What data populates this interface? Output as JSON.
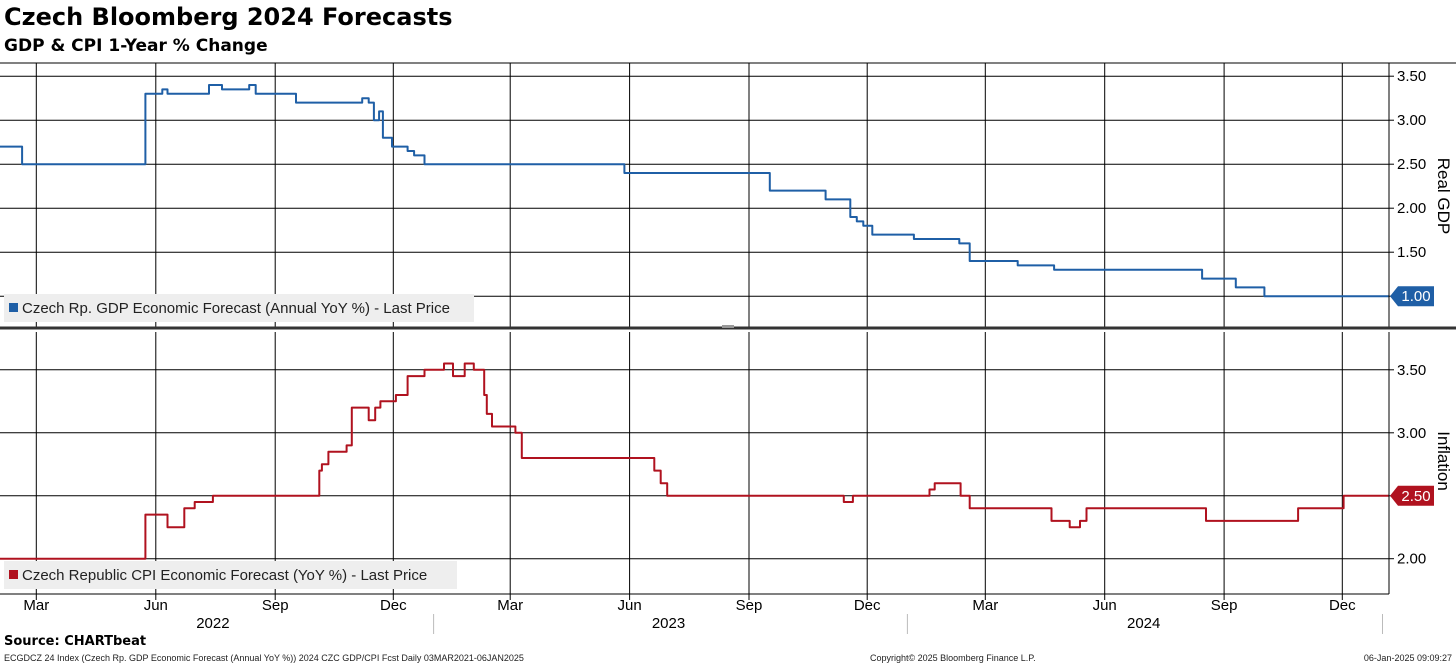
{
  "title": "Czech Bloomberg 2024 Forecasts",
  "subtitle": "GDP & CPI 1-Year % Change",
  "source": "Source: CHARTbeat",
  "footer": {
    "left": "ECGDCZ 24 Index (Czech Rp. GDP Economic Forecast (Annual YoY %)) 2024 CZC GDP/CPI Fcst  Daily 03MAR2021-06JAN2025",
    "middle": "Copyright© 2025 Bloomberg Finance L.P.",
    "right": "06-Jan-2025 09:09:27"
  },
  "colors": {
    "gdp": "#1f5fa6",
    "cpi": "#b0121f",
    "grid": "#000000",
    "legend_bg": "#eeeeee"
  },
  "chart_data": [
    {
      "type": "line",
      "title": "",
      "ylabel": "Real GDP",
      "ylim": [
        0.65,
        3.65
      ],
      "yticks": [
        "3.50",
        "3.00",
        "2.50",
        "2.00",
        "1.50",
        "1.00"
      ],
      "last_value_label": "1.00",
      "series": [
        {
          "name": "Czech Rp. GDP Economic Forecast (Annual YoY %) - Last Price",
          "x": [
            "2022-02-01",
            "2022-02-18",
            "2022-02-18",
            "2022-05-24",
            "2022-05-24",
            "2022-06-06",
            "2022-06-06",
            "2022-06-10",
            "2022-06-10",
            "2022-07-12",
            "2022-07-12",
            "2022-07-22",
            "2022-07-22",
            "2022-08-12",
            "2022-08-12",
            "2022-08-17",
            "2022-08-17",
            "2022-09-12",
            "2022-09-12",
            "2022-09-17",
            "2022-09-17",
            "2022-11-07",
            "2022-11-07",
            "2022-11-12",
            "2022-11-12",
            "2022-11-16",
            "2022-11-16",
            "2022-11-20",
            "2022-11-20",
            "2022-11-23",
            "2022-11-23",
            "2022-11-25",
            "2022-11-25",
            "2022-11-30",
            "2022-11-30",
            "2022-12-07",
            "2022-12-07",
            "2022-12-12",
            "2022-12-12",
            "2022-12-17",
            "2022-12-17",
            "2022-12-25",
            "2022-12-25",
            "2022-12-30",
            "2022-12-30",
            "2022-12-31",
            "2022-12-31",
            "2023-05-28",
            "2023-05-28",
            "2023-09-10",
            "2023-09-10",
            "2023-09-17",
            "2023-09-17",
            "2023-10-30",
            "2023-10-30",
            "2023-11-18",
            "2023-11-18",
            "2023-11-23",
            "2023-11-23",
            "2023-11-28",
            "2023-11-28",
            "2023-12-05",
            "2023-12-05",
            "2023-12-12",
            "2023-12-12",
            "2024-01-06",
            "2024-01-06",
            "2024-02-10",
            "2024-02-10",
            "2024-02-18",
            "2024-02-18",
            "2024-03-26",
            "2024-03-26",
            "2024-04-23",
            "2024-04-23",
            "2024-08-09",
            "2024-08-09",
            "2024-08-15",
            "2024-08-15",
            "2024-08-27",
            "2024-08-27",
            "2024-09-10",
            "2024-09-10",
            "2024-09-28",
            "2024-09-28",
            "2024-10-02",
            "2024-10-02",
            "2025-01-06"
          ],
          "values": [
            2.7,
            2.7,
            2.5,
            2.5,
            3.3,
            3.3,
            3.35,
            3.35,
            3.3,
            3.3,
            3.4,
            3.4,
            3.35,
            3.35,
            3.4,
            3.4,
            3.3,
            3.3,
            3.3,
            3.3,
            3.2,
            3.2,
            3.25,
            3.25,
            3.2,
            3.2,
            3.0,
            3.0,
            3.1,
            3.1,
            2.8,
            2.8,
            2.8,
            2.8,
            2.7,
            2.7,
            2.7,
            2.7,
            2.65,
            2.65,
            2.6,
            2.6,
            2.5,
            2.5,
            2.5,
            2.5,
            2.5,
            2.5,
            2.4,
            2.4,
            2.4,
            2.4,
            2.2,
            2.2,
            2.1,
            2.1,
            1.9,
            1.9,
            1.85,
            1.85,
            1.8,
            1.8,
            1.7,
            1.7,
            1.7,
            1.7,
            1.65,
            1.65,
            1.6,
            1.6,
            1.4,
            1.4,
            1.35,
            1.35,
            1.3,
            1.3,
            1.3,
            1.3,
            1.2,
            1.2,
            1.2,
            1.2,
            1.1,
            1.1,
            1.1,
            1.1,
            1.0,
            1.0
          ]
        }
      ]
    },
    {
      "type": "line",
      "title": "",
      "ylabel": "Inflation",
      "ylim": [
        1.72,
        3.8
      ],
      "yticks": [
        "3.50",
        "3.00",
        "2.50",
        "2.00"
      ],
      "last_value_label": "2.50",
      "xticks": [
        "Mar",
        "Jun",
        "Sep",
        "Dec",
        "Mar",
        "Jun",
        "Sep",
        "Dec",
        "Mar",
        "Jun",
        "Sep",
        "Dec"
      ],
      "xyears": [
        "2022",
        "2023",
        "2024"
      ],
      "series": [
        {
          "name": "Czech Republic CPI Economic Forecast (YoY %) - Last Price",
          "x": [
            "2022-02-01",
            "2022-05-24",
            "2022-05-24",
            "2022-06-10",
            "2022-06-10",
            "2022-06-23",
            "2022-06-23",
            "2022-06-25",
            "2022-06-25",
            "2022-07-01",
            "2022-07-01",
            "2022-07-15",
            "2022-07-15",
            "2022-10-05",
            "2022-10-05",
            "2022-10-07",
            "2022-10-07",
            "2022-10-12",
            "2022-10-12",
            "2022-10-16",
            "2022-10-16",
            "2022-10-26",
            "2022-10-26",
            "2022-10-30",
            "2022-10-30",
            "2022-11-12",
            "2022-11-12",
            "2022-11-17",
            "2022-11-17",
            "2022-11-21",
            "2022-11-21",
            "2022-12-03",
            "2022-12-03",
            "2022-12-12",
            "2022-12-12",
            "2022-12-21",
            "2022-12-21",
            "2022-12-25",
            "2022-12-25",
            "2023-01-09",
            "2023-01-09",
            "2023-01-16",
            "2023-01-16",
            "2023-01-25",
            "2023-01-25",
            "2023-02-01",
            "2023-02-01",
            "2023-02-09",
            "2023-02-09",
            "2023-02-11",
            "2023-02-11",
            "2023-02-15",
            "2023-02-15",
            "2023-03-05",
            "2023-03-05",
            "2023-03-10",
            "2023-03-10",
            "2023-06-20",
            "2023-06-20",
            "2023-06-25",
            "2023-06-25",
            "2023-06-30",
            "2023-06-30",
            "2023-11-13",
            "2023-11-13",
            "2023-11-20",
            "2023-11-20",
            "2024-01-18",
            "2024-01-18",
            "2024-01-22",
            "2024-01-22",
            "2024-01-25",
            "2024-01-25",
            "2024-02-11",
            "2024-02-11",
            "2024-02-18",
            "2024-02-18",
            "2024-04-21",
            "2024-04-21",
            "2024-05-05",
            "2024-05-05",
            "2024-05-13",
            "2024-05-13",
            "2024-05-18",
            "2024-05-18",
            "2024-08-18",
            "2024-08-18",
            "2024-10-28",
            "2024-10-28",
            "2024-12-02",
            "2024-12-02",
            "2025-01-06"
          ],
          "values": [
            2.0,
            2.0,
            2.35,
            2.35,
            2.25,
            2.25,
            2.4,
            2.4,
            2.4,
            2.4,
            2.45,
            2.45,
            2.5,
            2.5,
            2.7,
            2.7,
            2.75,
            2.75,
            2.85,
            2.85,
            2.85,
            2.85,
            2.9,
            2.9,
            3.2,
            3.2,
            3.1,
            3.1,
            3.2,
            3.2,
            3.25,
            3.25,
            3.3,
            3.3,
            3.45,
            3.45,
            3.45,
            3.45,
            3.5,
            3.5,
            3.55,
            3.55,
            3.45,
            3.45,
            3.55,
            3.55,
            3.5,
            3.5,
            3.3,
            3.3,
            3.15,
            3.15,
            3.05,
            3.05,
            3.0,
            3.0,
            2.8,
            2.8,
            2.7,
            2.7,
            2.6,
            2.6,
            2.5,
            2.5,
            2.45,
            2.45,
            2.5,
            2.5,
            2.55,
            2.55,
            2.6,
            2.6,
            2.6,
            2.6,
            2.5,
            2.5,
            2.4,
            2.4,
            2.3,
            2.3,
            2.25,
            2.25,
            2.3,
            2.3,
            2.4,
            2.4,
            2.3,
            2.3,
            2.4,
            2.4,
            2.5,
            2.5
          ]
        }
      ]
    }
  ]
}
